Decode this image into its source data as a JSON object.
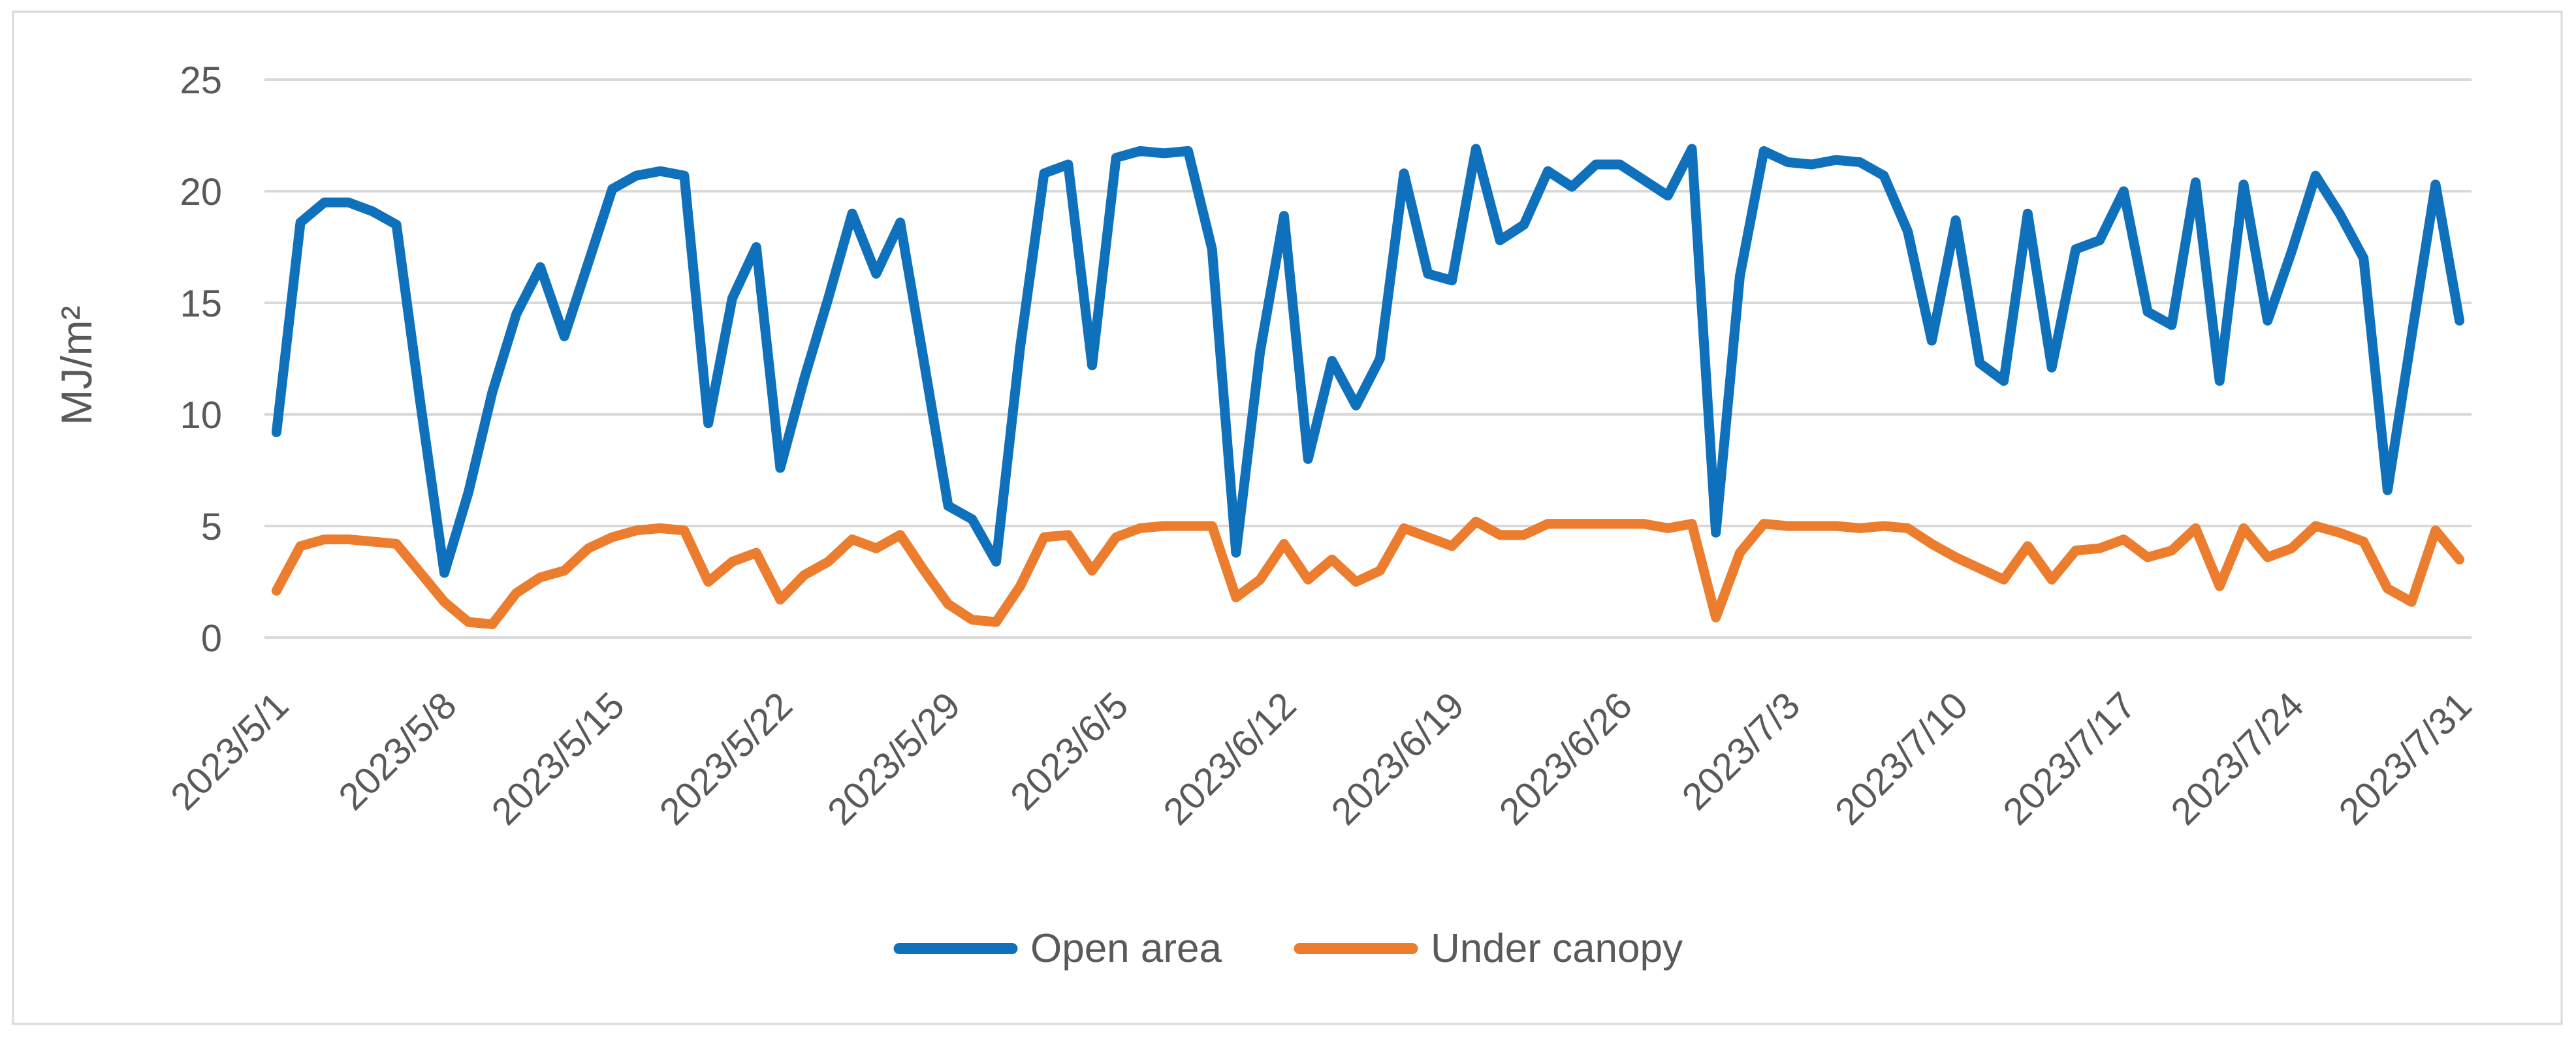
{
  "chart_data": {
    "type": "line",
    "title": "",
    "xlabel": "",
    "ylabel": "MJ/m²",
    "ylim": [
      0,
      25
    ],
    "grid": "horizontal",
    "legend_position": "bottom-center",
    "colors": {
      "text": "#595959",
      "gridline": "#D9D9D9",
      "border": "#D9D9D9",
      "background": "#FFFFFF"
    },
    "y_tick_labels": [
      "0",
      "5",
      "10",
      "15",
      "20",
      "25"
    ],
    "y_tick_values": [
      0,
      5,
      10,
      15,
      20,
      25
    ],
    "x_tick_labels": [
      "2023/5/1",
      "2023/5/8",
      "2023/5/15",
      "2023/5/22",
      "2023/5/29",
      "2023/6/5",
      "2023/6/12",
      "2023/6/19",
      "2023/6/26",
      "2023/7/3",
      "2023/7/10",
      "2023/7/17",
      "2023/7/24",
      "2023/7/31"
    ],
    "x_tick_indices": [
      0,
      7,
      14,
      21,
      28,
      35,
      42,
      49,
      56,
      63,
      70,
      77,
      84,
      91
    ],
    "categories": [
      "2023/5/1",
      "2023/5/2",
      "2023/5/3",
      "2023/5/4",
      "2023/5/5",
      "2023/5/6",
      "2023/5/7",
      "2023/5/8",
      "2023/5/9",
      "2023/5/10",
      "2023/5/11",
      "2023/5/12",
      "2023/5/13",
      "2023/5/14",
      "2023/5/15",
      "2023/5/16",
      "2023/5/17",
      "2023/5/18",
      "2023/5/19",
      "2023/5/20",
      "2023/5/21",
      "2023/5/22",
      "2023/5/23",
      "2023/5/24",
      "2023/5/25",
      "2023/5/26",
      "2023/5/27",
      "2023/5/28",
      "2023/5/29",
      "2023/5/30",
      "2023/5/31",
      "2023/6/1",
      "2023/6/2",
      "2023/6/3",
      "2023/6/4",
      "2023/6/5",
      "2023/6/6",
      "2023/6/7",
      "2023/6/8",
      "2023/6/9",
      "2023/6/10",
      "2023/6/11",
      "2023/6/12",
      "2023/6/13",
      "2023/6/14",
      "2023/6/15",
      "2023/6/16",
      "2023/6/17",
      "2023/6/18",
      "2023/6/19",
      "2023/6/20",
      "2023/6/21",
      "2023/6/22",
      "2023/6/23",
      "2023/6/24",
      "2023/6/25",
      "2023/6/26",
      "2023/6/27",
      "2023/6/28",
      "2023/6/29",
      "2023/6/30",
      "2023/7/1",
      "2023/7/2",
      "2023/7/3",
      "2023/7/4",
      "2023/7/5",
      "2023/7/6",
      "2023/7/7",
      "2023/7/8",
      "2023/7/9",
      "2023/7/10",
      "2023/7/11",
      "2023/7/12",
      "2023/7/13",
      "2023/7/14",
      "2023/7/15",
      "2023/7/16",
      "2023/7/17",
      "2023/7/18",
      "2023/7/19",
      "2023/7/20",
      "2023/7/21",
      "2023/7/22",
      "2023/7/23",
      "2023/7/24",
      "2023/7/25",
      "2023/7/26",
      "2023/7/27",
      "2023/7/28",
      "2023/7/29",
      "2023/7/30",
      "2023/7/31"
    ],
    "series": [
      {
        "name": "Open area",
        "color": "#0F71BC",
        "values": [
          9.2,
          18.6,
          19.5,
          19.5,
          19.1,
          18.5,
          10.5,
          2.9,
          6.5,
          11.0,
          14.5,
          16.6,
          13.5,
          16.8,
          20.1,
          20.7,
          20.9,
          20.7,
          9.6,
          15.2,
          17.5,
          7.6,
          11.6,
          15.2,
          19.0,
          16.3,
          18.6,
          12.3,
          5.9,
          5.3,
          3.4,
          13.0,
          20.8,
          21.2,
          12.2,
          21.5,
          21.8,
          21.7,
          21.8,
          17.4,
          3.8,
          12.8,
          18.9,
          8.0,
          12.4,
          10.4,
          12.5,
          20.8,
          16.3,
          16.0,
          21.9,
          17.8,
          18.5,
          20.9,
          20.2,
          21.2,
          21.2,
          20.5,
          19.8,
          21.9,
          4.7,
          16.2,
          21.8,
          21.3,
          21.2,
          21.4,
          21.3,
          20.7,
          18.2,
          13.3,
          18.7,
          12.3,
          11.5,
          19.0,
          12.1,
          17.4,
          17.8,
          20.0,
          14.6,
          14.0,
          20.4,
          11.5,
          20.3,
          14.2,
          17.3,
          20.7,
          19.0,
          17.0,
          6.6,
          13.5,
          20.3,
          14.2
        ]
      },
      {
        "name": "Under canopy",
        "color": "#EC7D2E",
        "values": [
          2.1,
          4.1,
          4.4,
          4.4,
          4.3,
          4.2,
          2.9,
          1.6,
          0.7,
          0.6,
          2.0,
          2.7,
          3.0,
          4.0,
          4.5,
          4.8,
          4.9,
          4.8,
          2.5,
          3.4,
          3.8,
          1.7,
          2.8,
          3.4,
          4.4,
          4.0,
          4.6,
          3.0,
          1.5,
          0.8,
          0.7,
          2.3,
          4.5,
          4.6,
          3.0,
          4.5,
          4.9,
          5.0,
          5.0,
          5.0,
          1.8,
          2.6,
          4.2,
          2.6,
          3.5,
          2.5,
          3.0,
          4.9,
          4.5,
          4.1,
          5.2,
          4.6,
          4.6,
          5.1,
          5.1,
          5.1,
          5.1,
          5.1,
          4.9,
          5.1,
          0.9,
          3.8,
          5.1,
          5.0,
          5.0,
          5.0,
          4.9,
          5.0,
          4.9,
          4.2,
          3.6,
          3.1,
          2.6,
          4.1,
          2.6,
          3.9,
          4.0,
          4.4,
          3.6,
          3.9,
          4.9,
          2.3,
          4.9,
          3.6,
          4.0,
          5.0,
          4.7,
          4.3,
          2.2,
          1.6,
          4.8,
          3.5
        ]
      }
    ]
  },
  "legend": {
    "items": [
      {
        "label": "Open area"
      },
      {
        "label": "Under canopy"
      }
    ]
  },
  "y_axis": {
    "title": "MJ/m²"
  }
}
